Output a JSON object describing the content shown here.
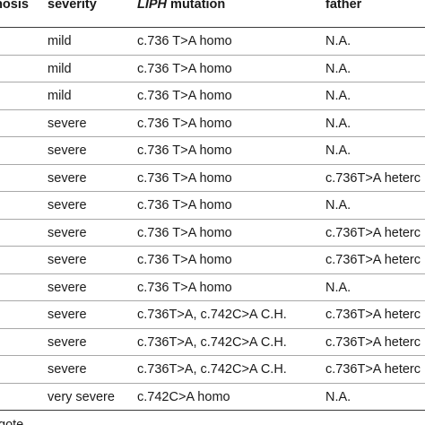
{
  "table": {
    "headers": {
      "diagnosis": "chosis",
      "severity": "severity",
      "mutation_gene": "LIPH",
      "mutation_suffix": " mutation",
      "father": "father"
    },
    "rows": [
      {
        "severity": "mild",
        "mutation": "c.736 T>A homo",
        "father": "N.A."
      },
      {
        "severity": "mild",
        "mutation": "c.736 T>A homo",
        "father": "N.A."
      },
      {
        "severity": "mild",
        "mutation": "c.736 T>A homo",
        "father": "N.A."
      },
      {
        "severity": "severe",
        "mutation": "c.736 T>A homo",
        "father": "N.A."
      },
      {
        "severity": "severe",
        "mutation": "c.736 T>A homo",
        "father": "N.A."
      },
      {
        "severity": "severe",
        "mutation": "c.736 T>A homo",
        "father": "c.736T>A heterc"
      },
      {
        "severity": "severe",
        "mutation": "c.736 T>A homo",
        "father": "N.A."
      },
      {
        "severity": "severe",
        "mutation": "c.736 T>A homo",
        "father": "c.736T>A heterc"
      },
      {
        "severity": "severe",
        "mutation": "c.736 T>A homo",
        "father": "c.736T>A heterc"
      },
      {
        "severity": "severe",
        "mutation": "c.736 T>A homo",
        "father": "N.A."
      },
      {
        "severity": "severe",
        "mutation": "c.736T>A, c.742C>A C.H.",
        "father": "c.736T>A heterc"
      },
      {
        "severity": "severe",
        "mutation": "c.736T>A, c.742C>A C.H.",
        "father": "c.736T>A heterc"
      },
      {
        "severity": "severe",
        "mutation": "c.736T>A, c.742C>A C.H.",
        "father": "c.736T>A heterc"
      },
      {
        "severity": "very severe",
        "mutation": "c.742C>A homo",
        "father": "N.A."
      }
    ]
  },
  "footnote": "gote."
}
